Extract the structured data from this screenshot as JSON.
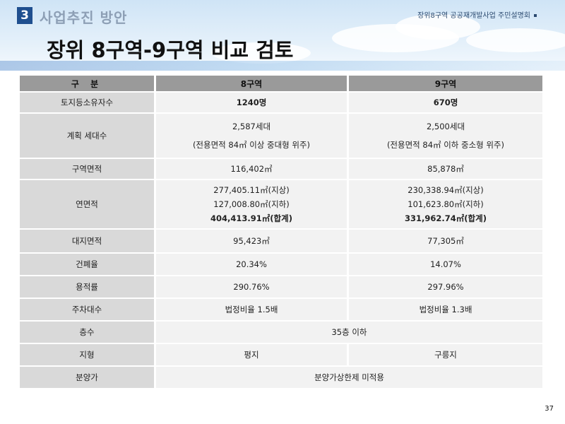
{
  "header": {
    "section_number": "3",
    "section_title": "사업추진 방안",
    "event_title": "장위8구역 공공재개발사업 주민설명회"
  },
  "main_title": "장위 8구역-9구역 비교 검토",
  "table": {
    "headers": [
      "구 분",
      "8구역",
      "9구역"
    ],
    "rows": {
      "owners": {
        "label": "토지등소유자수",
        "z8": "1240명",
        "z9": "670명"
      },
      "households": {
        "label": "계획 세대수",
        "z8": "2,587세대",
        "z8_note": "(전용면적 84㎡ 이상 중대형 위주)",
        "z9": "2,500세대",
        "z9_note": "(전용면적 84㎡ 이하 중소형 위주)"
      },
      "zone_area": {
        "label": "구역면적",
        "z8": "116,402㎡",
        "z9": "85,878㎡"
      },
      "floor_area": {
        "label": "연면적",
        "z8_above": "277,405.11㎡(지상)",
        "z8_below": "127,008.80㎡(지하)",
        "z8_total": "404,413.91㎡(합계)",
        "z9_above": "230,338.94㎡(지상)",
        "z9_below": "101,623.80㎡(지하)",
        "z9_total": "331,962.74㎡(합계)"
      },
      "site_area": {
        "label": "대지면적",
        "z8": "95,423㎡",
        "z9": "77,305㎡"
      },
      "coverage": {
        "label": "건폐율",
        "z8": "20.34%",
        "z9": "14.07%"
      },
      "far": {
        "label": "용적률",
        "z8": "290.76%",
        "z9": "297.96%"
      },
      "parking": {
        "label": "주차대수",
        "z8": "법정비율 1.5배",
        "z9": "법정비율 1.3배"
      },
      "floors": {
        "label": "층수",
        "both": "35층 이하"
      },
      "terrain": {
        "label": "지형",
        "z8": "평지",
        "z9": "구릉지"
      },
      "price": {
        "label": "분양가",
        "both": "분양가상한제 미적용"
      }
    }
  },
  "page_number": "37",
  "colors": {
    "header_row": "#9a9a9a",
    "label_cell": "#d9d9d9",
    "value_cell": "#f2f2f2",
    "highlight_red": "#e0141a",
    "section_badge": "#1f4f8f"
  }
}
